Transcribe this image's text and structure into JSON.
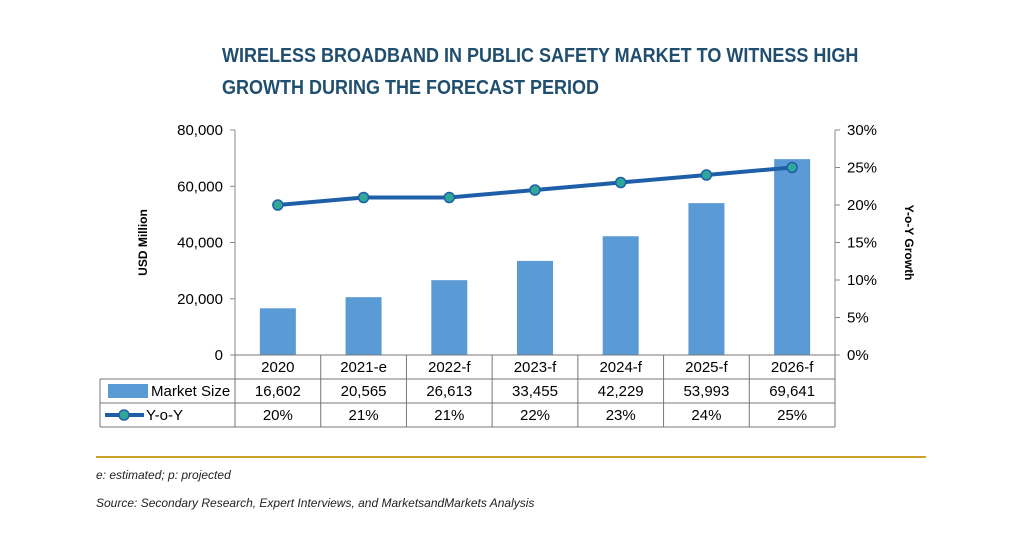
{
  "title": "WIRELESS BROADBAND IN PUBLIC SAFETY MARKET TO WITNESS HIGH GROWTH DURING THE FORECAST PERIOD",
  "footnote": "e: estimated; p: projected",
  "source": "Source: Secondary Research, Expert Interviews, and MarketsandMarkets Analysis",
  "colors": {
    "bar": "#5b9bd5",
    "line": "#1f5fa8",
    "marker": "#2fa89a",
    "title": "#1f4e6e",
    "divider": "#c9a227"
  },
  "chart_data": {
    "type": "bar",
    "categories": [
      "2020",
      "2021-e",
      "2022-f",
      "2023-f",
      "2024-f",
      "2025-f",
      "2026-f"
    ],
    "series": [
      {
        "name": "Market Size",
        "type": "bar",
        "axis": "left",
        "values": [
          16602,
          20565,
          26613,
          33455,
          42229,
          53993,
          69641
        ],
        "labels": [
          "16,602",
          "20,565",
          "26,613",
          "33,455",
          "42,229",
          "53,993",
          "69,641"
        ]
      },
      {
        "name": "Y-o-Y",
        "type": "line",
        "axis": "right",
        "values": [
          20,
          21,
          21,
          22,
          23,
          24,
          25
        ],
        "labels": [
          "20%",
          "21%",
          "21%",
          "22%",
          "23%",
          "24%",
          "25%"
        ]
      }
    ],
    "ylabel": "USD Million",
    "y2label": "Y-o-Y Growth",
    "ylim": [
      0,
      80000
    ],
    "y2lim": [
      0,
      30
    ],
    "yticks": [
      "0",
      "20,000",
      "40,000",
      "60,000",
      "80,000"
    ],
    "y2ticks": [
      "0%",
      "5%",
      "10%",
      "15%",
      "20%",
      "25%",
      "30%"
    ],
    "grid": false,
    "legend": "data table"
  }
}
